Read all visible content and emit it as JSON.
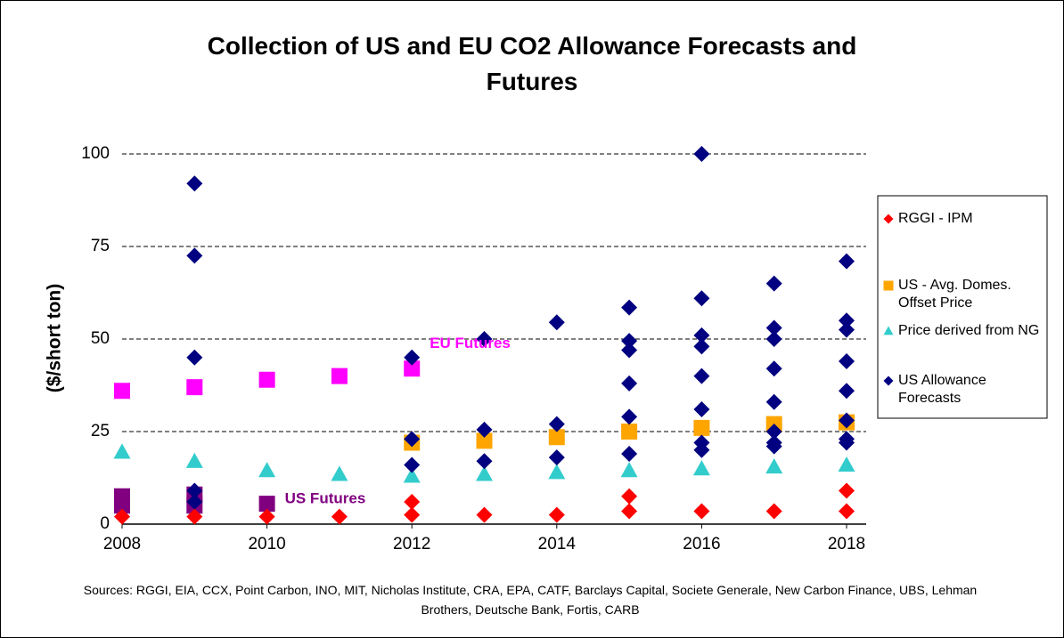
{
  "chart_data": {
    "type": "scatter",
    "title": "Collection of US and EU CO2 Allowance Forecasts and Futures",
    "y_label": "($/short ton)",
    "source": "Sources: RGGI, EIA, CCX, Point Carbon, INO, MIT, Nicholas Institute, CRA, EPA, CATF, Barclays Capital, Societe Generale, New Carbon Finance, UBS, Lehman Brothers, Deutsche Bank, Fortis, CARB",
    "xlim": [
      2008,
      2018
    ],
    "xticks": [
      2008,
      2010,
      2012,
      2014,
      2016,
      2018
    ],
    "ylim": [
      0,
      100
    ],
    "yticks": [
      0,
      25,
      50,
      75,
      100
    ],
    "grid": true,
    "legend": "right",
    "series": [
      {
        "name": "RGGI - IPM",
        "color": "#ff0000",
        "marker": "diamond",
        "x": [
          2008,
          2009,
          2010,
          2011,
          2012,
          2012,
          2013,
          2014,
          2015,
          2015,
          2016,
          2017,
          2018,
          2018
        ],
        "values": [
          2,
          2,
          2,
          2,
          2.5,
          6,
          2.5,
          2.5,
          3.5,
          7.5,
          3.5,
          3.5,
          3.5,
          9
        ]
      },
      {
        "name": "US - Avg. Domes. Offset Price",
        "color": "#ffa500",
        "marker": "square",
        "x": [
          2012,
          2013,
          2014,
          2015,
          2016,
          2017,
          2018
        ],
        "values": [
          22,
          22.5,
          23.5,
          25,
          26,
          27,
          27.5
        ]
      },
      {
        "name": "Price derived from NG",
        "color": "#33cccc",
        "marker": "triangle",
        "x": [
          2008,
          2009,
          2010,
          2011,
          2012,
          2013,
          2014,
          2015,
          2016,
          2017,
          2018
        ],
        "values": [
          19.5,
          17,
          14.5,
          13.5,
          13,
          13.5,
          14,
          14.5,
          15,
          15.5,
          16
        ]
      },
      {
        "name": "US Allowance Forecasts",
        "color": "#000080",
        "marker": "diamond",
        "x": [
          2009,
          2009,
          2009,
          2009,
          2009,
          2012,
          2012,
          2012,
          2013,
          2013,
          2013,
          2014,
          2014,
          2014,
          2015,
          2015,
          2015,
          2015,
          2015,
          2015,
          2016,
          2016,
          2016,
          2016,
          2016,
          2016,
          2016,
          2016,
          2017,
          2017,
          2017,
          2017,
          2017,
          2017,
          2017,
          2017,
          2018,
          2018,
          2018,
          2018,
          2018,
          2018,
          2018,
          2018
        ],
        "values": [
          92,
          72.5,
          45,
          9,
          6,
          45,
          23,
          16,
          50,
          25.5,
          17,
          54.5,
          27,
          18,
          58.5,
          49.5,
          47,
          38,
          29,
          19,
          100,
          61,
          51,
          48,
          40,
          31,
          22,
          20,
          65,
          53,
          50,
          42,
          33,
          25,
          22,
          21,
          71,
          55,
          52.5,
          44,
          36,
          28,
          23,
          22
        ]
      },
      {
        "name": "EU Futures",
        "color": "#ff00ff",
        "marker": "square",
        "legend": false,
        "x": [
          2008,
          2009,
          2010,
          2011,
          2012
        ],
        "values": [
          36,
          37,
          39,
          40,
          42
        ]
      },
      {
        "name": "US Futures",
        "color": "#800080",
        "marker": "square",
        "legend": false,
        "x": [
          2008,
          2008,
          2009,
          2009,
          2010
        ],
        "values": [
          7.5,
          5,
          8,
          5,
          5.5
        ]
      }
    ]
  }
}
